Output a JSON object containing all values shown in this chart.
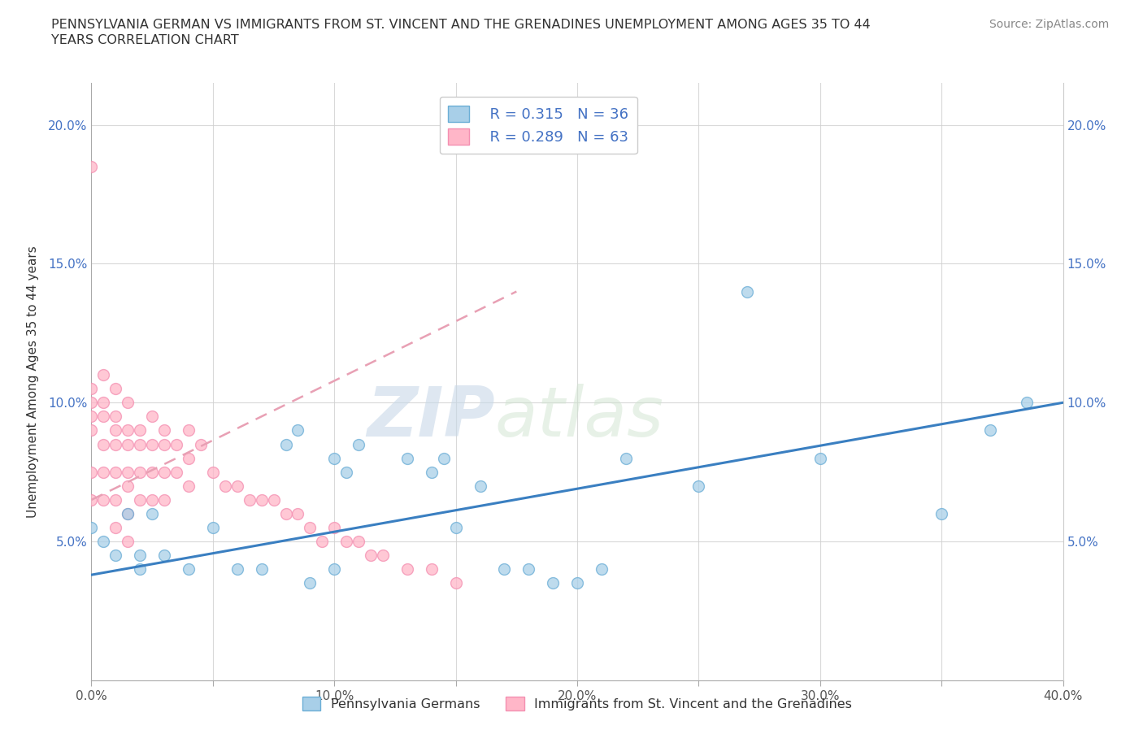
{
  "title_line1": "PENNSYLVANIA GERMAN VS IMMIGRANTS FROM ST. VINCENT AND THE GRENADINES UNEMPLOYMENT AMONG AGES 35 TO 44",
  "title_line2": "YEARS CORRELATION CHART",
  "source_text": "Source: ZipAtlas.com",
  "ylabel": "Unemployment Among Ages 35 to 44 years",
  "xlim": [
    0.0,
    0.4
  ],
  "ylim": [
    0.0,
    0.215
  ],
  "xticks": [
    0.0,
    0.05,
    0.1,
    0.15,
    0.2,
    0.25,
    0.3,
    0.35,
    0.4
  ],
  "xticklabels": [
    "0.0%",
    "",
    "10.0%",
    "",
    "20.0%",
    "",
    "30.0%",
    "",
    "40.0%"
  ],
  "yticks": [
    0.0,
    0.05,
    0.1,
    0.15,
    0.2
  ],
  "yticklabels": [
    "",
    "5.0%",
    "10.0%",
    "15.0%",
    "20.0%"
  ],
  "r_blue": 0.315,
  "n_blue": 36,
  "r_pink": 0.289,
  "n_pink": 63,
  "blue_color": "#a8cfe8",
  "blue_edge_color": "#6baed6",
  "pink_color": "#ffb6c8",
  "pink_edge_color": "#f48fb1",
  "trend_blue_color": "#3a7fc1",
  "trend_pink_color": "#e8a0b4",
  "watermark_zip": "ZIP",
  "watermark_atlas": "atlas",
  "blue_scatter_x": [
    0.0,
    0.005,
    0.01,
    0.015,
    0.02,
    0.02,
    0.025,
    0.03,
    0.04,
    0.05,
    0.06,
    0.07,
    0.08,
    0.085,
    0.09,
    0.1,
    0.1,
    0.105,
    0.11,
    0.13,
    0.14,
    0.145,
    0.15,
    0.16,
    0.17,
    0.18,
    0.19,
    0.2,
    0.21,
    0.22,
    0.25,
    0.27,
    0.3,
    0.35,
    0.37,
    0.385
  ],
  "blue_scatter_y": [
    0.055,
    0.05,
    0.045,
    0.06,
    0.04,
    0.045,
    0.06,
    0.045,
    0.04,
    0.055,
    0.04,
    0.04,
    0.085,
    0.09,
    0.035,
    0.08,
    0.04,
    0.075,
    0.085,
    0.08,
    0.075,
    0.08,
    0.055,
    0.07,
    0.04,
    0.04,
    0.035,
    0.035,
    0.04,
    0.08,
    0.07,
    0.14,
    0.08,
    0.06,
    0.09,
    0.1
  ],
  "pink_scatter_x": [
    0.0,
    0.0,
    0.0,
    0.0,
    0.0,
    0.0,
    0.0,
    0.005,
    0.005,
    0.005,
    0.005,
    0.005,
    0.005,
    0.01,
    0.01,
    0.01,
    0.01,
    0.01,
    0.01,
    0.01,
    0.015,
    0.015,
    0.015,
    0.015,
    0.015,
    0.015,
    0.015,
    0.02,
    0.02,
    0.02,
    0.02,
    0.025,
    0.025,
    0.025,
    0.025,
    0.03,
    0.03,
    0.03,
    0.03,
    0.035,
    0.035,
    0.04,
    0.04,
    0.04,
    0.045,
    0.05,
    0.055,
    0.06,
    0.065,
    0.07,
    0.075,
    0.08,
    0.085,
    0.09,
    0.095,
    0.1,
    0.105,
    0.11,
    0.115,
    0.12,
    0.13,
    0.14,
    0.15
  ],
  "pink_scatter_y": [
    0.185,
    0.105,
    0.1,
    0.095,
    0.09,
    0.075,
    0.065,
    0.11,
    0.1,
    0.095,
    0.085,
    0.075,
    0.065,
    0.105,
    0.095,
    0.09,
    0.085,
    0.075,
    0.065,
    0.055,
    0.1,
    0.09,
    0.085,
    0.075,
    0.07,
    0.06,
    0.05,
    0.09,
    0.085,
    0.075,
    0.065,
    0.095,
    0.085,
    0.075,
    0.065,
    0.09,
    0.085,
    0.075,
    0.065,
    0.085,
    0.075,
    0.09,
    0.08,
    0.07,
    0.085,
    0.075,
    0.07,
    0.07,
    0.065,
    0.065,
    0.065,
    0.06,
    0.06,
    0.055,
    0.05,
    0.055,
    0.05,
    0.05,
    0.045,
    0.045,
    0.04,
    0.04,
    0.035
  ],
  "blue_trend_x": [
    0.0,
    0.4
  ],
  "blue_trend_y": [
    0.038,
    0.1
  ],
  "pink_trend_x": [
    0.0,
    0.175
  ],
  "pink_trend_y": [
    0.065,
    0.14
  ]
}
